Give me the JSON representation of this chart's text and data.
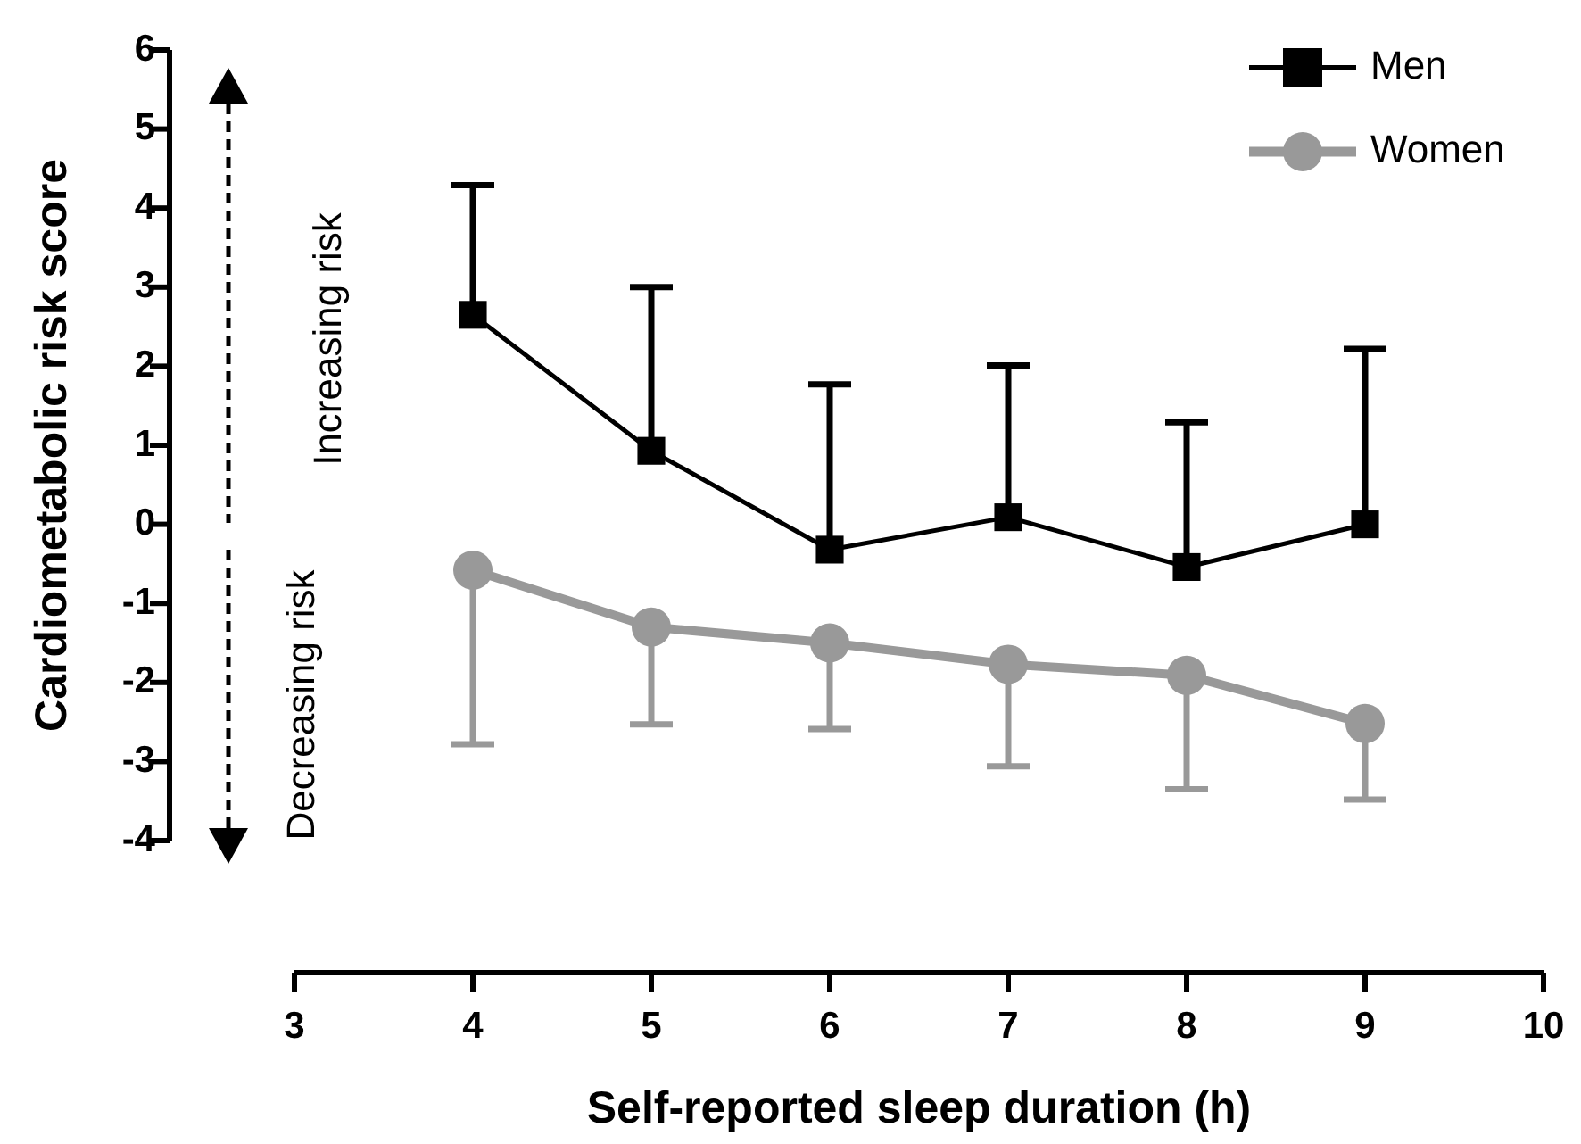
{
  "chart_data": {
    "type": "line",
    "xlabel": "Self-reported sleep duration (h)",
    "ylabel": "Cardiometabolic risk score",
    "annotations": [
      "Increasing risk",
      "Decreasing risk"
    ],
    "xlim": [
      3,
      10
    ],
    "xticks": [
      3,
      4,
      5,
      6,
      7,
      8,
      9,
      10
    ],
    "ylim": [
      -4,
      6
    ],
    "yticks": [
      -4,
      -3,
      -2,
      -1,
      0,
      1,
      2,
      3,
      4,
      5,
      6
    ],
    "x": [
      4,
      5,
      6,
      7,
      8,
      9
    ],
    "legend": "top right",
    "series": [
      {
        "name": "Men",
        "color": "#000000",
        "marker": "square",
        "values": [
          2.65,
          0.93,
          -0.32,
          0.09,
          -0.54,
          0.0
        ],
        "errors": [
          [
            2.65,
            4.29
          ],
          [
            0.93,
            3.0
          ],
          [
            -0.32,
            1.77
          ],
          [
            0.09,
            2.01
          ],
          [
            -0.54,
            1.29
          ],
          [
            0.0,
            2.22
          ]
        ]
      },
      {
        "name": "Women",
        "color": "#999999",
        "marker": "circle",
        "values": [
          -0.58,
          -1.3,
          -1.5,
          -1.77,
          -1.91,
          -2.52
        ],
        "errors": [
          [
            -2.78,
            -0.58
          ],
          [
            -2.53,
            -1.3
          ],
          [
            -2.59,
            -1.5
          ],
          [
            -3.06,
            -1.77
          ],
          [
            -3.35,
            -1.91
          ],
          [
            -3.48,
            -2.52
          ]
        ]
      }
    ]
  }
}
